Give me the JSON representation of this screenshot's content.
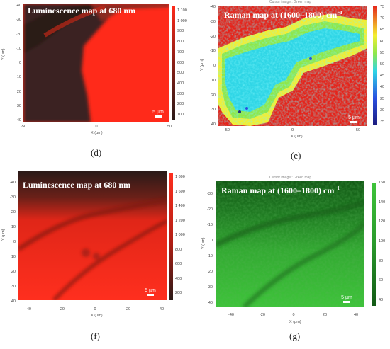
{
  "panels": {
    "d": {
      "caption": "(d)",
      "title": "Luminescence map at 680 nm",
      "scale": "5 µm",
      "xlabel": "X (µm)",
      "ylabel": "Y (µm)",
      "xticks": [
        "-50",
        "0",
        "50"
      ],
      "yticks": [
        "-40",
        "-30",
        "-20",
        "-10",
        "0",
        "10",
        "20",
        "30",
        "40"
      ],
      "cbar_ticks": [
        "1 100",
        "1 000",
        "900",
        "800",
        "700",
        "600",
        "500",
        "400",
        "300",
        "200",
        "100"
      ],
      "colormap": "black-red"
    },
    "e": {
      "caption": "(e)",
      "header": "Cursor image : Green map",
      "title": "Raman map at (1600–1800) cm",
      "title_sup": "−1",
      "scale": "5 µm",
      "xlabel": "X (µm)",
      "ylabel": "Y (µm)",
      "xticks": [
        "-50",
        "0",
        "50"
      ],
      "yticks": [
        "-40",
        "-30",
        "-20",
        "-10",
        "0",
        "10",
        "20",
        "30",
        "40"
      ],
      "cbar_ticks": [
        "75",
        "70",
        "65",
        "60",
        "55",
        "50",
        "45",
        "40",
        "35",
        "30",
        "25"
      ],
      "colormap": "rainbow"
    },
    "f": {
      "caption": "(f)",
      "title": "Luminescence map at 680 nm",
      "scale": "5 µm",
      "xlabel": "X (µm)",
      "ylabel": "Y (µm)",
      "xticks": [
        "-40",
        "-20",
        "0",
        "20",
        "40"
      ],
      "yticks": [
        "-40",
        "-30",
        "-20",
        "-10",
        "0",
        "10",
        "20",
        "30",
        "40"
      ],
      "cbar_ticks": [
        "1 800",
        "1 600",
        "1 400",
        "1 200",
        "1 000",
        "800",
        "600",
        "400",
        "200"
      ],
      "colormap": "black-red"
    },
    "g": {
      "caption": "(g)",
      "header": "Cursor image : Green map",
      "title": "Raman map at (1600–1800) cm",
      "title_sup": "−1",
      "scale": "5 µm",
      "xlabel": "X (µm)",
      "ylabel": "Y (µm)",
      "xticks": [
        "-40",
        "-20",
        "0",
        "20",
        "40"
      ],
      "yticks": [
        "-30",
        "-20",
        "-10",
        "0",
        "10",
        "20",
        "30",
        "40"
      ],
      "cbar_ticks": [
        "160",
        "140",
        "120",
        "100",
        "80",
        "60",
        "40"
      ],
      "colormap": "green"
    }
  },
  "colors": {
    "red": "#ff2a1a",
    "dark": "#2a1a1a",
    "green": "#3ec43a",
    "dark_green": "#135a16",
    "rainbow_red": "#e5241b",
    "rainbow_cyan": "#2fd6e6"
  }
}
